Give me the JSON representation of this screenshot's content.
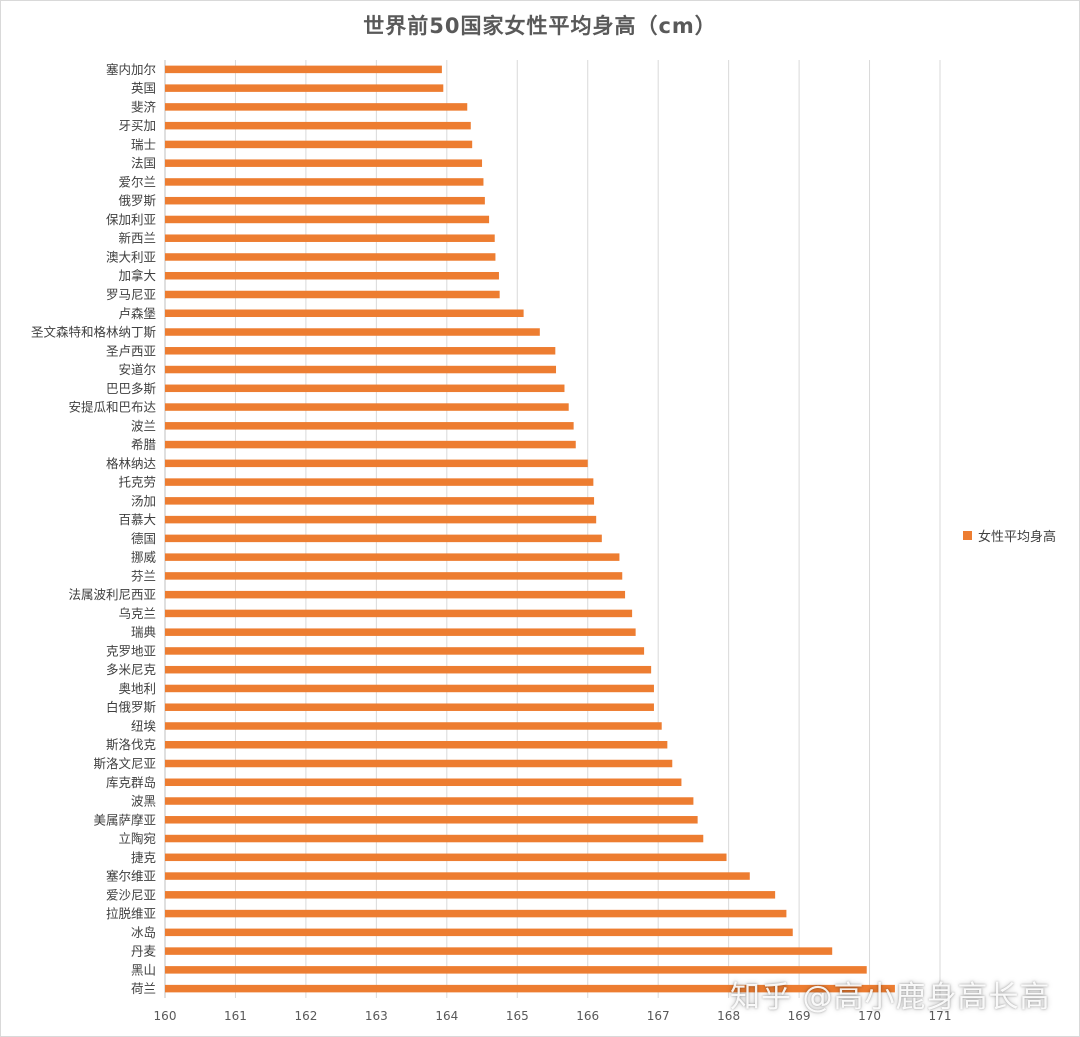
{
  "chart_data": {
    "type": "bar",
    "orientation": "horizontal",
    "title": "世界前50国家女性平均身高（cm）",
    "xlabel": "",
    "ylabel": "",
    "xlim": [
      160,
      171
    ],
    "ticks": [
      160,
      161,
      162,
      163,
      164,
      165,
      166,
      167,
      168,
      169,
      170,
      171
    ],
    "grid": true,
    "legend_position": "right",
    "bar_color": "#ed7d31",
    "series": [
      {
        "name": "女性平均身高",
        "categories": [
          "塞内加尔",
          "英国",
          "斐济",
          "牙买加",
          "瑞士",
          "法国",
          "爱尔兰",
          "俄罗斯",
          "保加利亚",
          "新西兰",
          "澳大利亚",
          "加拿大",
          "罗马尼亚",
          "卢森堡",
          "圣文森特和格林纳丁斯",
          "圣卢西亚",
          "安道尔",
          "巴巴多斯",
          "安提瓜和巴布达",
          "波兰",
          "希腊",
          "格林纳达",
          "托克劳",
          "汤加",
          "百慕大",
          "德国",
          "挪威",
          "芬兰",
          "法属波利尼西亚",
          "乌克兰",
          "瑞典",
          "克罗地亚",
          "多米尼克",
          "奥地利",
          "白俄罗斯",
          "纽埃",
          "斯洛伐克",
          "斯洛文尼亚",
          "库克群岛",
          "波黑",
          "美属萨摩亚",
          "立陶宛",
          "捷克",
          "塞尔维亚",
          "爱沙尼亚",
          "拉脱维亚",
          "冰岛",
          "丹麦",
          "黑山",
          "荷兰"
        ],
        "values": [
          163.93,
          163.95,
          164.29,
          164.34,
          164.36,
          164.5,
          164.52,
          164.54,
          164.6,
          164.68,
          164.69,
          164.74,
          164.75,
          165.09,
          165.32,
          165.54,
          165.55,
          165.67,
          165.73,
          165.8,
          165.83,
          166.0,
          166.08,
          166.09,
          166.12,
          166.2,
          166.45,
          166.49,
          166.53,
          166.63,
          166.68,
          166.8,
          166.9,
          166.94,
          166.94,
          167.05,
          167.13,
          167.2,
          167.33,
          167.5,
          167.56,
          167.64,
          167.97,
          168.3,
          168.66,
          168.82,
          168.91,
          169.47,
          169.96,
          170.36
        ]
      }
    ]
  },
  "watermark_text": "知乎 @高小鹿身高长高"
}
